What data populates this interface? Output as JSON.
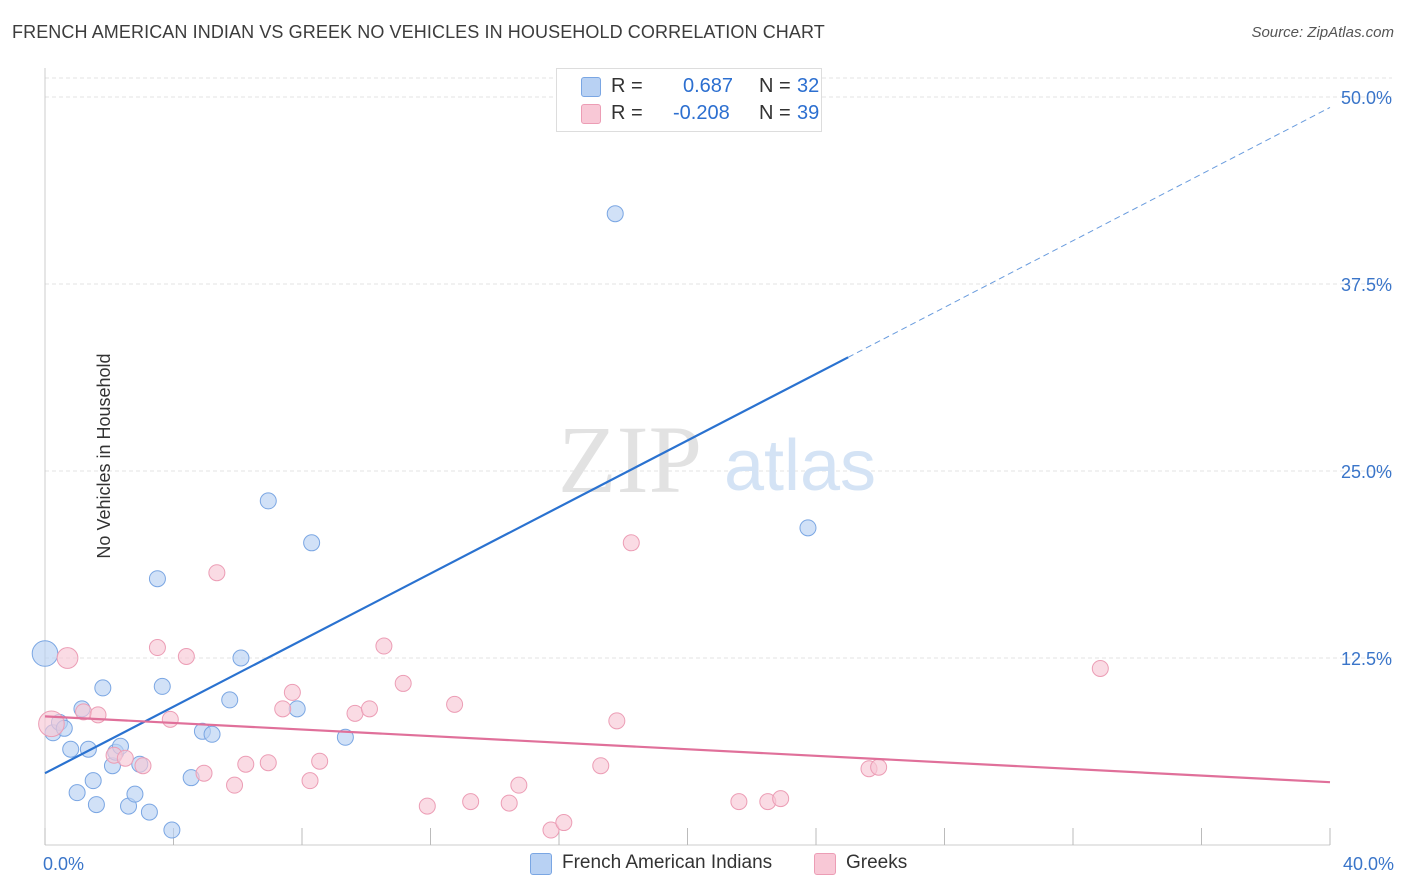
{
  "header": {
    "title": "FRENCH AMERICAN INDIAN VS GREEK NO VEHICLES IN HOUSEHOLD CORRELATION CHART",
    "source": "Source: ZipAtlas.com"
  },
  "legend": {
    "series1": {
      "r_label": "R =",
      "r_value": "0.687",
      "n_label": "N =",
      "n_value": "32"
    },
    "series2": {
      "r_label": "R =",
      "r_value": "-0.208",
      "n_label": "N =",
      "n_value": "39"
    }
  },
  "watermark": {
    "zip": "ZIP",
    "atlas": "atlas"
  },
  "colors": {
    "blue_fill": "#b8d1f3",
    "blue_stroke": "#7aa6e3",
    "blue_line": "#2a72d0",
    "pink_fill": "#f8c8d6",
    "pink_stroke": "#ec9db5",
    "pink_line": "#e0709a",
    "tick_label": "#3a75c9",
    "grid": "#e3e3e3"
  },
  "chart_data": {
    "type": "scatter",
    "title": "FRENCH AMERICAN INDIAN VS GREEK NO VEHICLES IN HOUSEHOLD CORRELATION CHART",
    "xlabel": "",
    "ylabel": "No Vehicles in Household",
    "xlim": [
      0,
      40
    ],
    "ylim": [
      0,
      50
    ],
    "x_tick_labels": [
      "0.0%",
      "40.0%"
    ],
    "y_ticks": [
      12.5,
      25.0,
      37.5,
      50.0
    ],
    "y_tick_labels": [
      "12.5%",
      "25.0%",
      "37.5%",
      "50.0%"
    ],
    "grid": true,
    "series": [
      {
        "name": "French American Indians",
        "color": "#b8d1f3",
        "r": 0.687,
        "n": 32,
        "trend": {
          "x0": 0.0,
          "y0": 4.8,
          "x1": 25.0,
          "y1": 32.6,
          "dashed_to_x": 40.0,
          "dashed_to_y": 49.3
        },
        "points": [
          [
            0.0,
            12.8,
            1.6
          ],
          [
            0.25,
            7.5,
            1
          ],
          [
            0.45,
            8.2,
            1
          ],
          [
            0.6,
            7.8,
            1
          ],
          [
            0.8,
            6.4,
            1
          ],
          [
            1.0,
            3.5,
            1
          ],
          [
            1.15,
            9.1,
            1
          ],
          [
            1.35,
            6.4,
            1
          ],
          [
            1.5,
            4.3,
            1
          ],
          [
            1.6,
            2.7,
            1
          ],
          [
            1.8,
            10.5,
            1
          ],
          [
            2.1,
            5.3,
            1
          ],
          [
            2.2,
            6.2,
            1
          ],
          [
            2.35,
            6.6,
            1
          ],
          [
            2.6,
            2.6,
            1
          ],
          [
            2.8,
            3.4,
            1
          ],
          [
            2.95,
            5.4,
            1
          ],
          [
            3.25,
            2.2,
            1
          ],
          [
            3.5,
            17.8,
            1
          ],
          [
            3.65,
            10.6,
            1
          ],
          [
            3.95,
            1.0,
            1
          ],
          [
            4.55,
            4.5,
            1
          ],
          [
            4.9,
            7.6,
            1
          ],
          [
            5.2,
            7.4,
            1
          ],
          [
            5.75,
            9.7,
            1
          ],
          [
            6.1,
            12.5,
            1
          ],
          [
            6.95,
            23.0,
            1
          ],
          [
            7.85,
            9.1,
            1
          ],
          [
            8.3,
            20.2,
            1
          ],
          [
            9.35,
            7.2,
            1
          ],
          [
            17.75,
            42.2,
            1
          ],
          [
            23.75,
            21.2,
            1
          ]
        ]
      },
      {
        "name": "Greeks",
        "color": "#f8c8d6",
        "r": -0.208,
        "n": 39,
        "trend": {
          "x0": 0.0,
          "y0": 8.6,
          "x1": 40.0,
          "y1": 4.2
        },
        "points": [
          [
            0.2,
            8.1,
            1.6
          ],
          [
            0.7,
            12.5,
            1.3
          ],
          [
            1.2,
            8.9,
            1
          ],
          [
            1.65,
            8.7,
            1
          ],
          [
            2.15,
            6.0,
            1
          ],
          [
            2.5,
            5.8,
            1
          ],
          [
            3.05,
            5.3,
            1
          ],
          [
            3.5,
            13.2,
            1
          ],
          [
            3.9,
            8.4,
            1
          ],
          [
            4.4,
            12.6,
            1
          ],
          [
            4.95,
            4.8,
            1
          ],
          [
            5.35,
            18.2,
            1
          ],
          [
            5.9,
            4.0,
            1
          ],
          [
            6.25,
            5.4,
            1
          ],
          [
            6.95,
            5.5,
            1
          ],
          [
            7.4,
            9.1,
            1
          ],
          [
            7.7,
            10.2,
            1
          ],
          [
            8.25,
            4.3,
            1
          ],
          [
            8.55,
            5.6,
            1
          ],
          [
            9.65,
            8.8,
            1
          ],
          [
            10.1,
            9.1,
            1
          ],
          [
            10.55,
            13.3,
            1
          ],
          [
            11.15,
            10.8,
            1
          ],
          [
            11.9,
            2.6,
            1
          ],
          [
            12.75,
            9.4,
            1
          ],
          [
            13.25,
            2.9,
            1
          ],
          [
            14.45,
            2.8,
            1
          ],
          [
            14.75,
            4.0,
            1
          ],
          [
            15.75,
            1.0,
            1
          ],
          [
            16.15,
            1.5,
            1
          ],
          [
            17.3,
            5.3,
            1
          ],
          [
            17.8,
            8.3,
            1
          ],
          [
            18.25,
            20.2,
            1
          ],
          [
            21.6,
            2.9,
            1
          ],
          [
            22.5,
            2.9,
            1
          ],
          [
            22.9,
            3.1,
            1
          ],
          [
            25.65,
            5.1,
            1
          ],
          [
            25.95,
            5.2,
            1
          ],
          [
            32.85,
            11.8,
            1
          ]
        ]
      }
    ]
  }
}
